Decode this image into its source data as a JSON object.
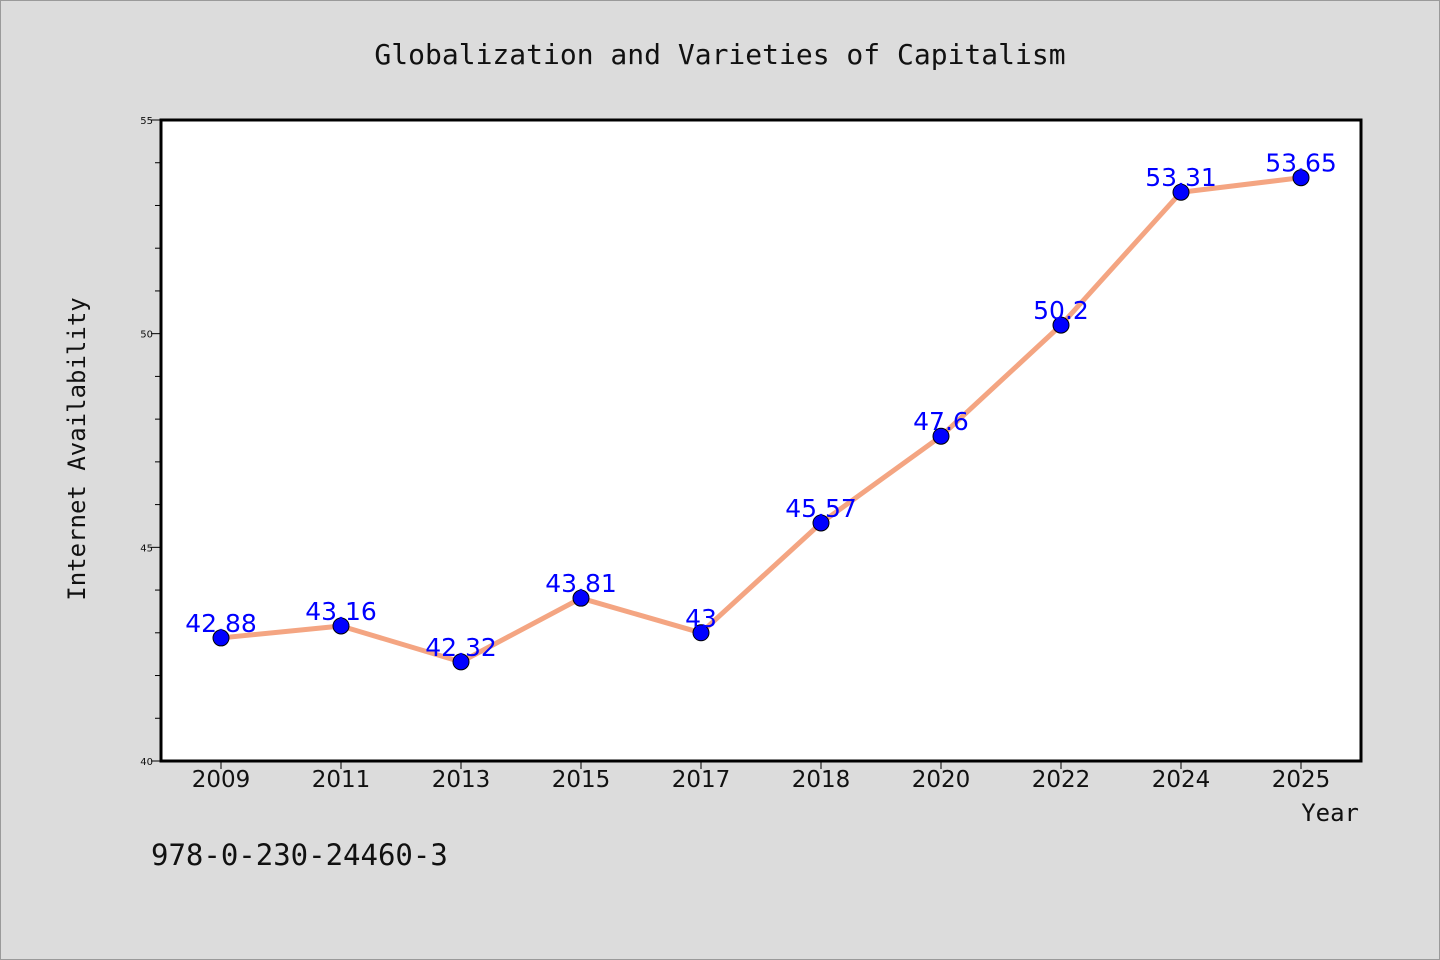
{
  "chart_data": {
    "type": "line",
    "title": "Globalization and Varieties of Capitalism",
    "xlabel": "Year",
    "ylabel": "Internet Availability",
    "categories": [
      "2009",
      "2011",
      "2013",
      "2015",
      "2017",
      "2018",
      "2020",
      "2022",
      "2024",
      "2025"
    ],
    "series": [
      {
        "values": [
          42.88,
          43.16,
          42.32,
          43.81,
          43,
          45.57,
          47.6,
          50.2,
          53.31,
          53.65
        ],
        "labels": [
          "42.88",
          "43.16",
          "42.32",
          "43.81",
          "43",
          "45.57",
          "47.6",
          "50.2",
          "53.31",
          "53.65"
        ]
      }
    ],
    "ylim": [
      40,
      55
    ],
    "yticks": [
      "40",
      "45",
      "50",
      "55"
    ],
    "grid": false,
    "colors": {
      "line": "#f4a582",
      "marker": "#0000ff",
      "label": "#0000ff"
    }
  },
  "footer": {
    "isbn": "978-0-230-24460-3"
  }
}
